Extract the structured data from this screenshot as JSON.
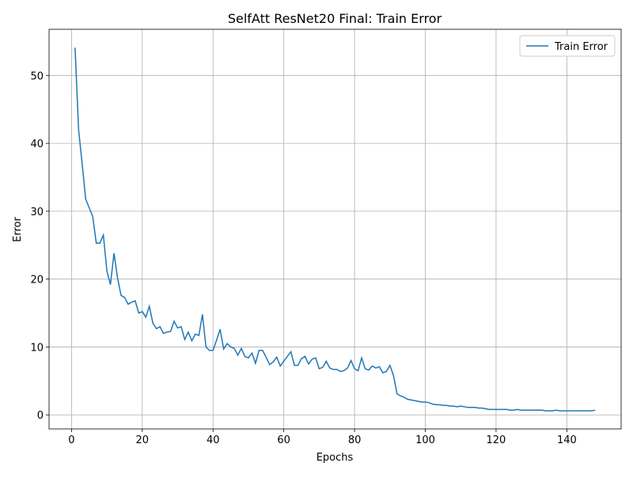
{
  "chart_data": {
    "type": "line",
    "title": "SelfAtt ResNet20 Final: Train Error",
    "x_label": "Epochs",
    "y_label": "Error",
    "x": [
      1,
      2,
      3,
      4,
      5,
      6,
      7,
      8,
      9,
      10,
      11,
      12,
      13,
      14,
      15,
      16,
      17,
      18,
      19,
      20,
      21,
      22,
      23,
      24,
      25,
      26,
      27,
      28,
      29,
      30,
      31,
      32,
      33,
      34,
      35,
      36,
      37,
      38,
      39,
      40,
      41,
      42,
      43,
      44,
      45,
      46,
      47,
      48,
      49,
      50,
      51,
      52,
      53,
      54,
      55,
      56,
      57,
      58,
      59,
      60,
      61,
      62,
      63,
      64,
      65,
      66,
      67,
      68,
      69,
      70,
      71,
      72,
      73,
      74,
      75,
      76,
      77,
      78,
      79,
      80,
      81,
      82,
      83,
      84,
      85,
      86,
      87,
      88,
      89,
      90,
      91,
      92,
      93,
      94,
      95,
      96,
      97,
      98,
      99,
      100,
      101,
      102,
      103,
      104,
      105,
      106,
      107,
      108,
      109,
      110,
      111,
      112,
      113,
      114,
      115,
      116,
      117,
      118,
      119,
      120,
      121,
      122,
      123,
      124,
      125,
      126,
      127,
      128,
      129,
      130,
      131,
      132,
      133,
      134,
      135,
      136,
      137,
      138,
      139,
      140,
      141,
      142,
      143,
      144,
      145,
      146,
      147,
      148
    ],
    "series": [
      {
        "name": "Train Error",
        "color": "#1f77b4",
        "values": [
          54.1,
          42,
          37,
          31.8,
          30.5,
          29.2,
          25.3,
          25.3,
          26.5,
          21.2,
          19.2,
          23.8,
          20.2,
          17.6,
          17.3,
          16.3,
          16.6,
          16.8,
          15,
          15.2,
          14.4,
          16,
          13.5,
          12.7,
          13,
          12,
          12.2,
          12.3,
          13.8,
          12.8,
          13,
          11.1,
          12.2,
          10.9,
          11.9,
          11.7,
          14.8,
          10,
          9.5,
          9.5,
          11,
          12.6,
          9.7,
          10.5,
          10,
          9.8,
          8.8,
          9.8,
          8.6,
          8.4,
          9.1,
          7.6,
          9.5,
          9.5,
          8.5,
          7.4,
          7.8,
          8.5,
          7.2,
          7.9,
          8.6,
          9.3,
          7.3,
          7.3,
          8.3,
          8.6,
          7.5,
          8.2,
          8.4,
          6.8,
          7,
          7.9,
          6.9,
          6.7,
          6.7,
          6.4,
          6.5,
          6.9,
          8,
          6.8,
          6.5,
          8.4,
          6.8,
          6.6,
          7.2,
          6.9,
          7.1,
          6.2,
          6.4,
          7.3,
          5.8,
          3.1,
          2.8,
          2.6,
          2.3,
          2.2,
          2.1,
          2,
          1.9,
          1.9,
          1.8,
          1.6,
          1.5,
          1.5,
          1.4,
          1.4,
          1.3,
          1.3,
          1.2,
          1.3,
          1.2,
          1.1,
          1.1,
          1.1,
          1,
          1,
          0.9,
          0.8,
          0.8,
          0.8,
          0.8,
          0.8,
          0.8,
          0.7,
          0.7,
          0.8,
          0.7,
          0.7,
          0.7,
          0.7,
          0.7,
          0.7,
          0.7,
          0.6,
          0.6,
          0.6,
          0.7,
          0.6,
          0.6,
          0.6,
          0.6,
          0.6,
          0.6,
          0.6,
          0.6,
          0.6,
          0.6,
          0.7
        ]
      }
    ],
    "xlim": [
      -6.35,
      155.35
    ],
    "xticks": [
      0,
      20,
      40,
      60,
      80,
      100,
      120,
      140
    ],
    "ylim": [
      -2.07,
      56.8
    ],
    "yticks": [
      0,
      10,
      20,
      30,
      40,
      50
    ],
    "grid": true,
    "legend": "upper right"
  }
}
